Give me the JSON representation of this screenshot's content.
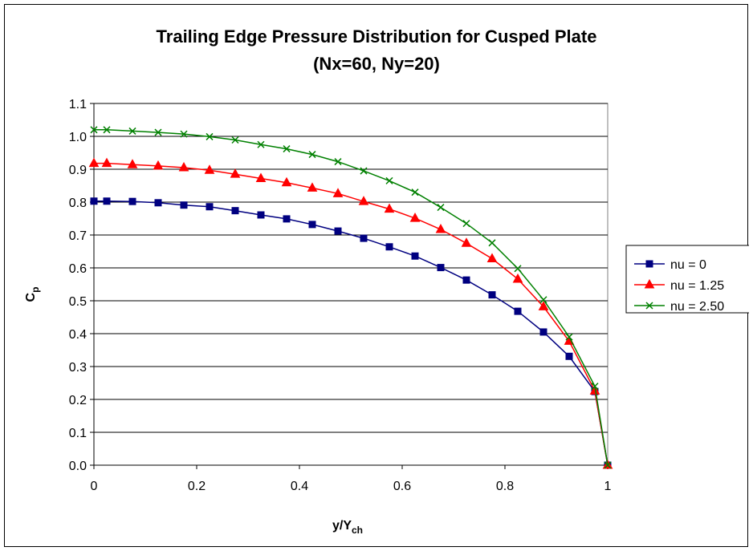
{
  "chart_data": {
    "type": "line",
    "title": "Trailing Edge Pressure Distribution for Cusped Plate",
    "subtitle": "(Nx=60, Ny=20)",
    "xlabel": {
      "main": "y/Y",
      "sub": "ch"
    },
    "ylabel": {
      "main": "C",
      "sub": "p"
    },
    "xlim": [
      0,
      1
    ],
    "ylim": [
      0,
      1.1
    ],
    "x_ticks": [
      "0",
      "0.2",
      "0.4",
      "0.6",
      "0.8",
      "1"
    ],
    "x_tick_values": [
      0,
      0.2,
      0.4,
      0.6,
      0.8,
      1
    ],
    "y_ticks": [
      "0.0",
      "0.1",
      "0.2",
      "0.3",
      "0.4",
      "0.5",
      "0.6",
      "0.7",
      "0.8",
      "0.9",
      "1.0",
      "1.1"
    ],
    "y_tick_values": [
      0,
      0.1,
      0.2,
      0.3,
      0.4,
      0.5,
      0.6,
      0.7,
      0.8,
      0.9,
      1.0,
      1.1
    ],
    "grid": "horizontal major",
    "legend_position": "right",
    "x": [
      0,
      0.025,
      0.075,
      0.125,
      0.175,
      0.225,
      0.275,
      0.325,
      0.375,
      0.425,
      0.475,
      0.525,
      0.575,
      0.625,
      0.675,
      0.725,
      0.775,
      0.825,
      0.875,
      0.925,
      0.975,
      1.0
    ],
    "series": [
      {
        "name": "nu = 0",
        "color": "#000080",
        "marker": "square",
        "values": [
          0.803,
          0.803,
          0.802,
          0.798,
          0.791,
          0.786,
          0.774,
          0.761,
          0.749,
          0.732,
          0.712,
          0.69,
          0.664,
          0.636,
          0.601,
          0.563,
          0.518,
          0.468,
          0.405,
          0.331,
          0.224,
          0.0
        ]
      },
      {
        "name": "nu = 1.25",
        "color": "#ff0000",
        "marker": "triangle",
        "values": [
          0.918,
          0.918,
          0.914,
          0.91,
          0.905,
          0.897,
          0.885,
          0.872,
          0.859,
          0.843,
          0.826,
          0.802,
          0.779,
          0.751,
          0.717,
          0.675,
          0.628,
          0.566,
          0.482,
          0.377,
          0.226,
          0.0
        ]
      },
      {
        "name": "nu = 2.50",
        "color": "#008000",
        "marker": "x",
        "values": [
          1.02,
          1.02,
          1.016,
          1.012,
          1.007,
          0.999,
          0.989,
          0.975,
          0.962,
          0.945,
          0.923,
          0.895,
          0.865,
          0.83,
          0.784,
          0.735,
          0.676,
          0.598,
          0.503,
          0.39,
          0.24,
          0.0
        ]
      }
    ]
  }
}
